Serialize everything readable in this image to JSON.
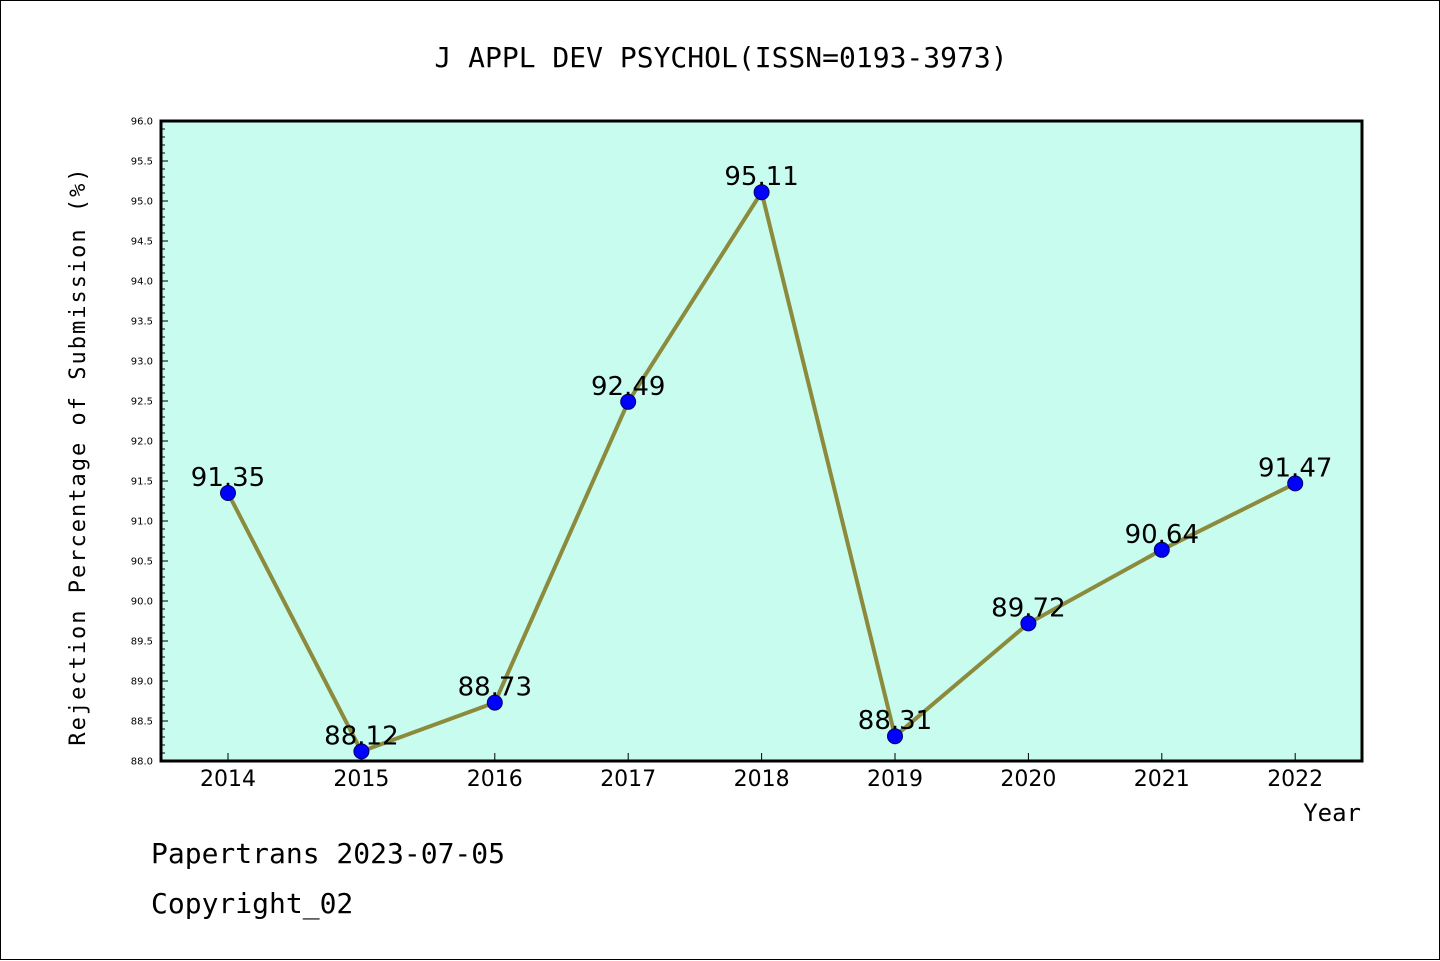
{
  "chart_data": {
    "type": "line",
    "title": "J APPL DEV PSYCHOL(ISSN=0193-3973)",
    "xlabel": "Year",
    "ylabel": "Rejection Percentage of Submission (%)",
    "categories": [
      "2014",
      "2015",
      "2016",
      "2017",
      "2018",
      "2019",
      "2020",
      "2021",
      "2022"
    ],
    "series": [
      {
        "values": [
          91.35,
          88.12,
          88.73,
          92.49,
          95.11,
          88.31,
          89.72,
          90.64,
          91.47
        ]
      }
    ],
    "data_labels": [
      "91.35",
      "88.12",
      "88.73",
      "92.49",
      "95.11",
      "88.31",
      "89.72",
      "90.64",
      "91.47"
    ],
    "ylim": [
      88.0,
      96.0
    ],
    "yticks": [
      "88.0",
      "88.5",
      "89.0",
      "89.5",
      "90.0",
      "90.5",
      "91.0",
      "91.5",
      "92.0",
      "92.5",
      "93.0",
      "93.5",
      "94.0",
      "94.5",
      "95.0",
      "95.5",
      "96.0"
    ],
    "grid": false,
    "legend": "none",
    "colors": {
      "plot_background": "#c7fcee",
      "line": "#8c8a3c",
      "marker": "#0000ff",
      "axis": "#000000"
    }
  },
  "footer": {
    "line1": "Papertrans 2023-07-05",
    "line2": "Copyright_02"
  }
}
